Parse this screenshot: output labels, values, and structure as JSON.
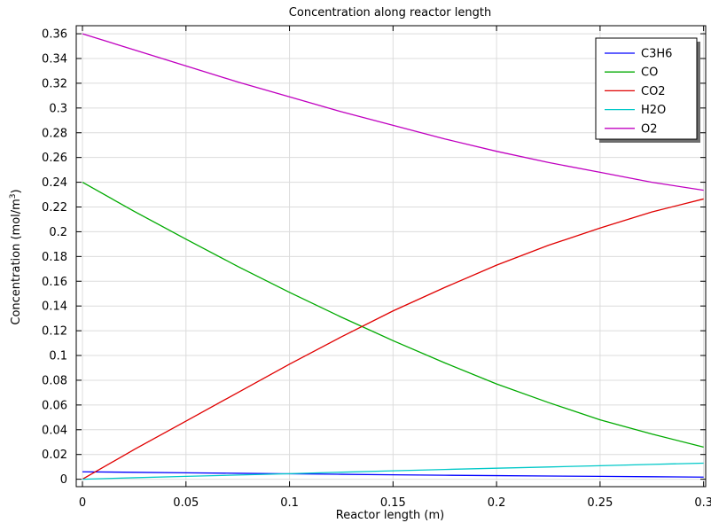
{
  "chart_data": {
    "type": "line",
    "title": "Concentration along reactor length",
    "xlabel": "Reactor length (m)",
    "ylabel": "Concentration (mol/m",
    "ylabel_sup": "3",
    "ylabel_close": ")",
    "xlim": [
      -0.003,
      0.301
    ],
    "ylim": [
      -0.006,
      0.3665
    ],
    "xticks": [
      0,
      0.05,
      0.1,
      0.15,
      0.2,
      0.25,
      0.3
    ],
    "xtick_labels": [
      "0",
      "0.05",
      "0.1",
      "0.15",
      "0.2",
      "0.25",
      "0.3"
    ],
    "yticks": [
      0,
      0.02,
      0.04,
      0.06,
      0.08,
      0.1,
      0.12,
      0.14,
      0.16,
      0.18,
      0.2,
      0.22,
      0.24,
      0.26,
      0.28,
      0.3,
      0.32,
      0.34,
      0.36
    ],
    "ytick_labels": [
      "0",
      "0.02",
      "0.04",
      "0.06",
      "0.08",
      "0.1",
      "0.12",
      "0.14",
      "0.16",
      "0.18",
      "0.2",
      "0.22",
      "0.24",
      "0.26",
      "0.28",
      "0.3",
      "0.32",
      "0.34",
      "0.36"
    ],
    "grid": true,
    "legend_position": "top-right",
    "x": [
      0,
      0.025,
      0.05,
      0.075,
      0.1,
      0.125,
      0.15,
      0.175,
      0.2,
      0.225,
      0.25,
      0.275,
      0.3
    ],
    "series": [
      {
        "name": "C3H6",
        "color": "#0000ff",
        "values": [
          0.006,
          0.0056,
          0.0052,
          0.0048,
          0.0044,
          0.004,
          0.0036,
          0.0032,
          0.0029,
          0.0026,
          0.0023,
          0.002,
          0.0017
        ]
      },
      {
        "name": "CO",
        "color": "#00aa00",
        "values": [
          0.24,
          0.2165,
          0.194,
          0.172,
          0.151,
          0.131,
          0.112,
          0.094,
          0.077,
          0.062,
          0.048,
          0.0365,
          0.026
        ]
      },
      {
        "name": "CO2",
        "color": "#e00000",
        "values": [
          0.0,
          0.024,
          0.047,
          0.07,
          0.093,
          0.115,
          0.136,
          0.155,
          0.173,
          0.189,
          0.203,
          0.216,
          0.2265
        ]
      },
      {
        "name": "H2O",
        "color": "#00c8c8",
        "values": [
          0.0,
          0.0012,
          0.0023,
          0.0034,
          0.0045,
          0.0057,
          0.0068,
          0.0079,
          0.0089,
          0.0099,
          0.0109,
          0.012,
          0.013
        ]
      },
      {
        "name": "O2",
        "color": "#c000c0",
        "values": [
          0.36,
          0.347,
          0.334,
          0.321,
          0.309,
          0.297,
          0.286,
          0.275,
          0.265,
          0.256,
          0.248,
          0.24,
          0.2335
        ]
      }
    ]
  }
}
